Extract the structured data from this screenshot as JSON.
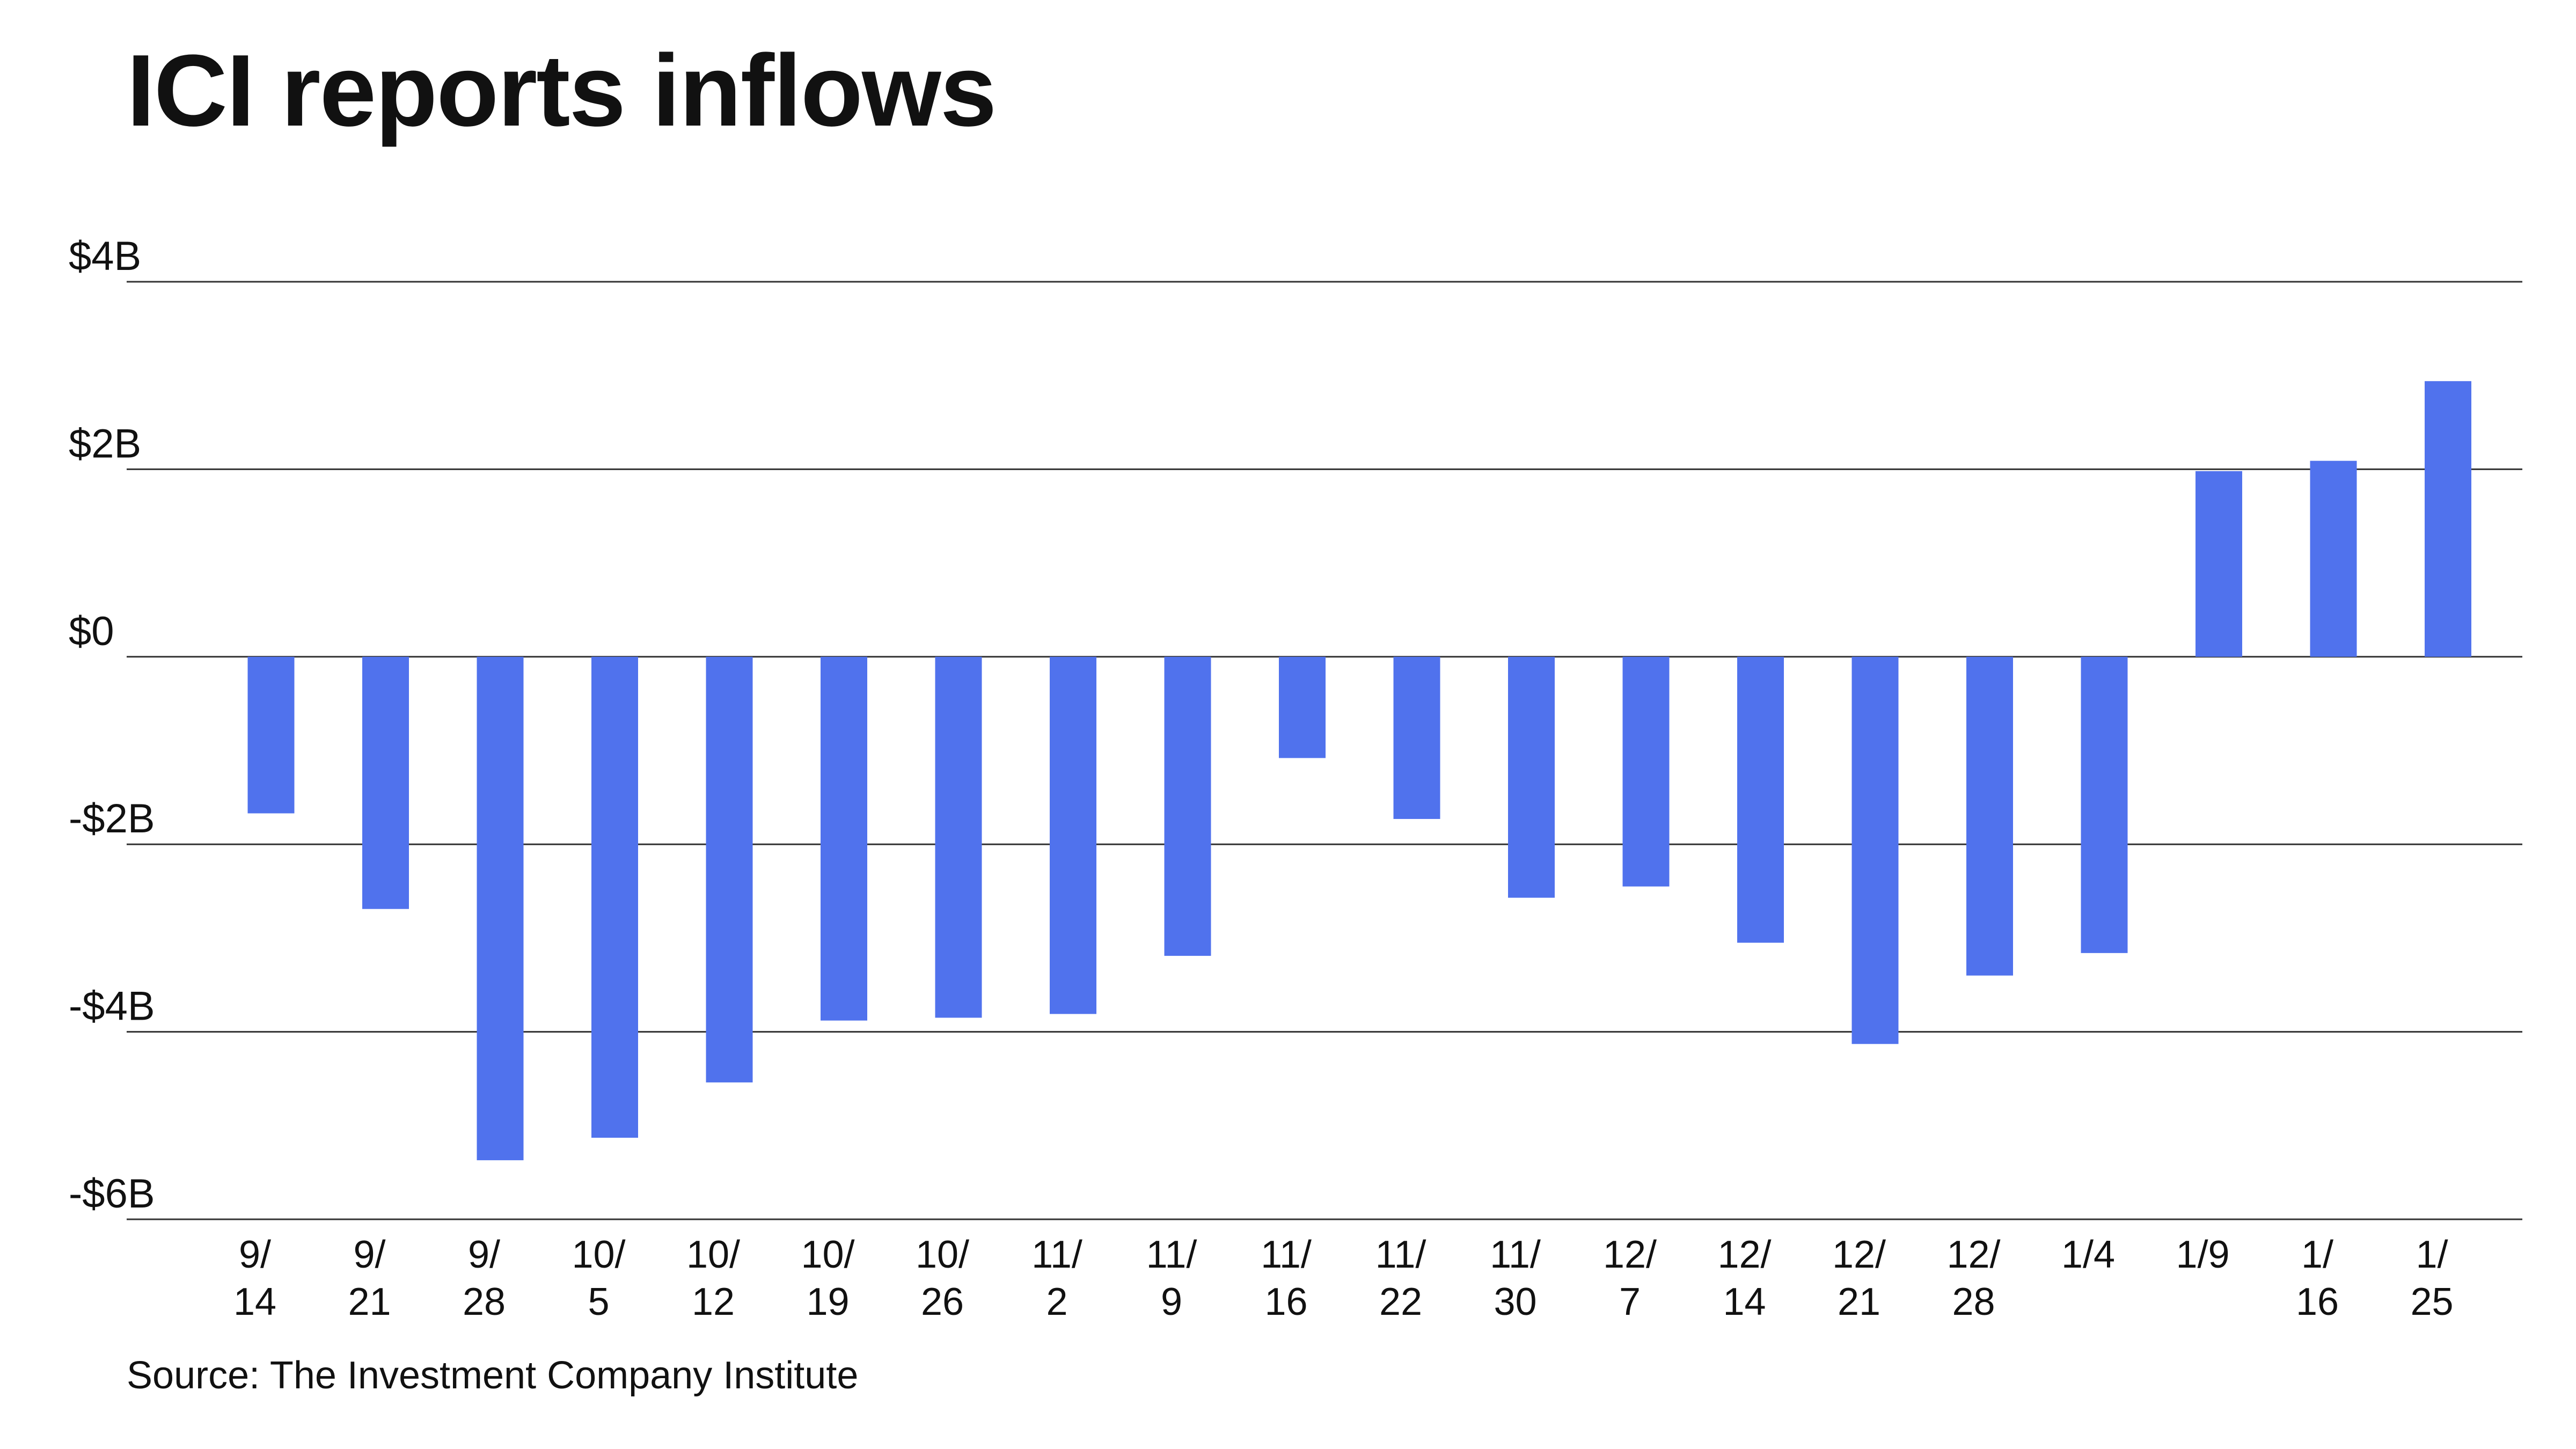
{
  "title": "ICI reports inflows",
  "source": "Source: The Investment Company Institute",
  "colors": {
    "bar": "#5072ED",
    "grid": "#333333",
    "text": "#111111"
  },
  "chart_data": {
    "type": "bar",
    "title": "ICI reports inflows",
    "xlabel": "",
    "ylabel": "",
    "ylim": [
      -6,
      4
    ],
    "yunit": "billions of dollars",
    "yticks": [
      {
        "value": 4,
        "label": "$4B"
      },
      {
        "value": 2,
        "label": "$2B"
      },
      {
        "value": 0,
        "label": "$0"
      },
      {
        "value": -2,
        "label": "-$2B"
      },
      {
        "value": -4,
        "label": "-$4B"
      },
      {
        "value": -6,
        "label": "-$6B"
      }
    ],
    "grid": true,
    "legend": "none",
    "categories": [
      {
        "line1": "9/",
        "line2": "14"
      },
      {
        "line1": "9/",
        "line2": "21"
      },
      {
        "line1": "9/",
        "line2": "28"
      },
      {
        "line1": "10/",
        "line2": "5"
      },
      {
        "line1": "10/",
        "line2": "12"
      },
      {
        "line1": "10/",
        "line2": "19"
      },
      {
        "line1": "10/",
        "line2": "26"
      },
      {
        "line1": "11/",
        "line2": "2"
      },
      {
        "line1": "11/",
        "line2": "9"
      },
      {
        "line1": "11/",
        "line2": "16"
      },
      {
        "line1": "11/",
        "line2": "22"
      },
      {
        "line1": "11/",
        "line2": "30"
      },
      {
        "line1": "12/",
        "line2": "7"
      },
      {
        "line1": "12/",
        "line2": "14"
      },
      {
        "line1": "12/",
        "line2": "21"
      },
      {
        "line1": "12/",
        "line2": "28"
      },
      {
        "line1": "1/4",
        "line2": ""
      },
      {
        "line1": "1/9",
        "line2": ""
      },
      {
        "line1": "1/",
        "line2": "16"
      },
      {
        "line1": "1/",
        "line2": "25"
      }
    ],
    "values": [
      -1.67,
      -2.69,
      -5.37,
      -5.13,
      -4.54,
      -3.88,
      -3.85,
      -3.81,
      -3.19,
      -1.08,
      -1.73,
      -2.57,
      -2.45,
      -3.05,
      -4.13,
      -3.4,
      -3.16,
      1.98,
      2.09,
      2.94
    ]
  }
}
